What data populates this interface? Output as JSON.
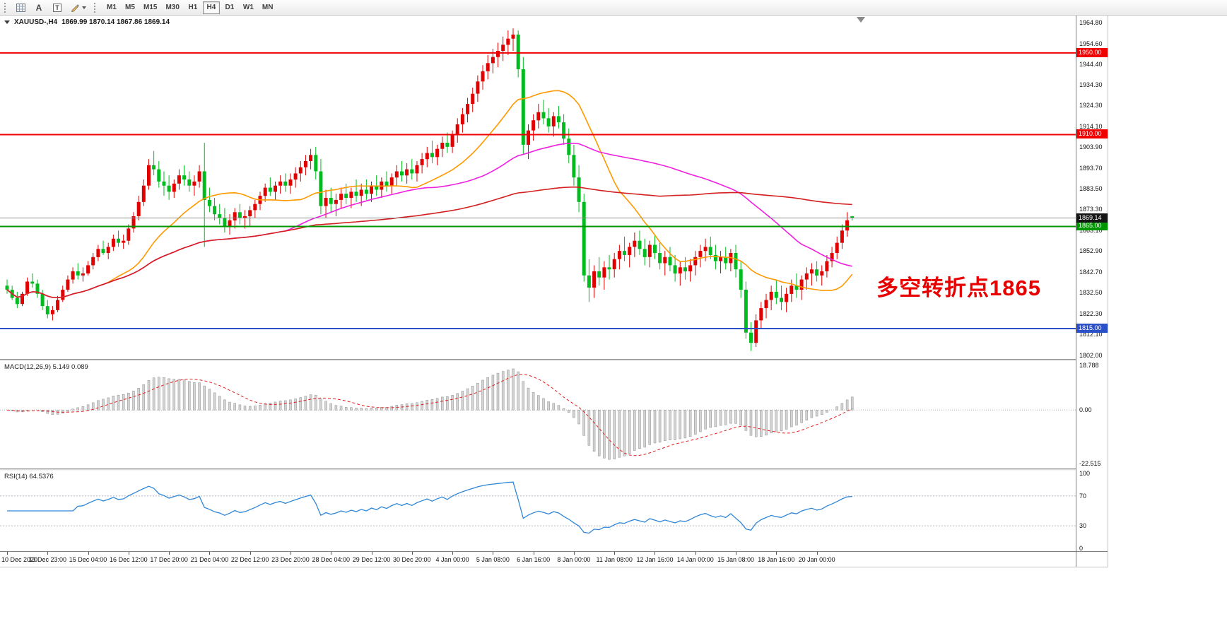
{
  "toolbar": {
    "text_label": "A",
    "text_box_label": "T",
    "timeframes": [
      {
        "label": "M1",
        "active": false
      },
      {
        "label": "M5",
        "active": false
      },
      {
        "label": "M15",
        "active": false
      },
      {
        "label": "M30",
        "active": false
      },
      {
        "label": "H1",
        "active": false
      },
      {
        "label": "H4",
        "active": true
      },
      {
        "label": "D1",
        "active": false
      },
      {
        "label": "W1",
        "active": false
      },
      {
        "label": "MN",
        "active": false
      }
    ]
  },
  "chart": {
    "title": {
      "symbol_tf": "XAUUSD-,H4",
      "ohlc": "1869.99 1870.14 1867.86 1869.14"
    },
    "annotation": {
      "text": "多空转折点1865",
      "color": "#e80000"
    }
  },
  "chart_data": [
    {
      "type": "candlestick",
      "title": "XAUUSD-,H4",
      "symbol": "XAUUSD",
      "timeframe": "H4",
      "ylim": [
        1800.1,
        1968.3
      ],
      "colors": {
        "up": "#e00000",
        "down": "#00bc1e",
        "bg": "#ffffff"
      },
      "y_axis_labels": [
        "1964.80",
        "1954.60",
        "1944.40",
        "1934.30",
        "1924.30",
        "1914.10",
        "1903.90",
        "1893.70",
        "1883.50",
        "1873.30",
        "1863.10",
        "1852.90",
        "1842.70",
        "1832.50",
        "1822.30",
        "1812.10",
        "1802.00"
      ],
      "x_labels": [
        "10 Dec 2020",
        "13 Dec 23:00",
        "15 Dec 04:00",
        "16 Dec 12:00",
        "17 Dec 20:00",
        "21 Dec 04:00",
        "22 Dec 12:00",
        "23 Dec 20:00",
        "28 Dec 04:00",
        "29 Dec 12:00",
        "30 Dec 20:00",
        "4 Jan 00:00",
        "5 Jan 08:00",
        "6 Jan 16:00",
        "8 Jan 00:00",
        "11 Jan 08:00",
        "12 Jan 16:00",
        "14 Jan 00:00",
        "15 Jan 08:00",
        "18 Jan 16:00",
        "20 Jan 00:00"
      ],
      "candles_per_label": 8,
      "candles": [
        [
          1836,
          1839,
          1832,
          1834
        ],
        [
          1834,
          1836,
          1829,
          1830
        ],
        [
          1830,
          1833,
          1825,
          1827
        ],
        [
          1827,
          1833,
          1826,
          1832
        ],
        [
          1832,
          1840,
          1831,
          1838
        ],
        [
          1838,
          1842,
          1835,
          1837
        ],
        [
          1837,
          1839,
          1830,
          1832
        ],
        [
          1832,
          1834,
          1824,
          1826
        ],
        [
          1826,
          1829,
          1820,
          1822
        ],
        [
          1822,
          1826,
          1819,
          1824
        ],
        [
          1824,
          1831,
          1823,
          1829
        ],
        [
          1829,
          1836,
          1828,
          1834
        ],
        [
          1834,
          1841,
          1833,
          1839
        ],
        [
          1839,
          1845,
          1837,
          1843
        ],
        [
          1843,
          1847,
          1839,
          1841
        ],
        [
          1841,
          1845,
          1838,
          1842
        ],
        [
          1842,
          1848,
          1841,
          1846
        ],
        [
          1846,
          1852,
          1844,
          1850
        ],
        [
          1850,
          1856,
          1848,
          1854
        ],
        [
          1854,
          1858,
          1851,
          1852
        ],
        [
          1852,
          1857,
          1849,
          1855
        ],
        [
          1855,
          1861,
          1853,
          1859
        ],
        [
          1859,
          1863,
          1855,
          1857
        ],
        [
          1857,
          1861,
          1854,
          1858
        ],
        [
          1858,
          1866,
          1856,
          1864
        ],
        [
          1864,
          1872,
          1862,
          1870
        ],
        [
          1870,
          1880,
          1868,
          1877
        ],
        [
          1877,
          1888,
          1875,
          1885
        ],
        [
          1885,
          1898,
          1883,
          1895
        ],
        [
          1895,
          1902,
          1890,
          1893
        ],
        [
          1893,
          1897,
          1884,
          1887
        ],
        [
          1887,
          1892,
          1880,
          1885
        ],
        [
          1885,
          1890,
          1878,
          1882
        ],
        [
          1882,
          1888,
          1879,
          1886
        ],
        [
          1886,
          1893,
          1883,
          1890
        ],
        [
          1890,
          1895,
          1885,
          1888
        ],
        [
          1888,
          1892,
          1882,
          1885
        ],
        [
          1885,
          1890,
          1880,
          1887
        ],
        [
          1887,
          1895,
          1884,
          1892
        ],
        [
          1892,
          1906,
          1855,
          1878
        ],
        [
          1878,
          1884,
          1872,
          1875
        ],
        [
          1875,
          1879,
          1868,
          1871
        ],
        [
          1871,
          1876,
          1866,
          1869
        ],
        [
          1869,
          1874,
          1862,
          1865
        ],
        [
          1865,
          1871,
          1861,
          1868
        ],
        [
          1868,
          1874,
          1864,
          1872
        ],
        [
          1872,
          1876,
          1866,
          1869
        ],
        [
          1869,
          1873,
          1864,
          1870
        ],
        [
          1870,
          1875,
          1865,
          1873
        ],
        [
          1873,
          1878,
          1869,
          1876
        ],
        [
          1876,
          1882,
          1873,
          1880
        ],
        [
          1880,
          1886,
          1877,
          1884
        ],
        [
          1884,
          1889,
          1880,
          1882
        ],
        [
          1882,
          1887,
          1878,
          1885
        ],
        [
          1885,
          1890,
          1881,
          1887
        ],
        [
          1887,
          1891,
          1882,
          1885
        ],
        [
          1885,
          1891,
          1881,
          1888
        ],
        [
          1888,
          1894,
          1884,
          1891
        ],
        [
          1891,
          1897,
          1887,
          1894
        ],
        [
          1894,
          1900,
          1890,
          1897
        ],
        [
          1897,
          1903,
          1893,
          1900
        ],
        [
          1900,
          1904,
          1888,
          1892
        ],
        [
          1892,
          1898,
          1871,
          1875
        ],
        [
          1875,
          1883,
          1869,
          1879
        ],
        [
          1879,
          1884,
          1872,
          1876
        ],
        [
          1876,
          1881,
          1870,
          1878
        ],
        [
          1878,
          1884,
          1874,
          1881
        ],
        [
          1881,
          1886,
          1876,
          1879
        ],
        [
          1879,
          1884,
          1874,
          1882
        ],
        [
          1882,
          1888,
          1877,
          1880
        ],
        [
          1880,
          1886,
          1875,
          1883
        ],
        [
          1883,
          1888,
          1878,
          1881
        ],
        [
          1881,
          1887,
          1877,
          1885
        ],
        [
          1885,
          1890,
          1880,
          1883
        ],
        [
          1883,
          1889,
          1879,
          1887
        ],
        [
          1887,
          1892,
          1882,
          1885
        ],
        [
          1885,
          1891,
          1881,
          1889
        ],
        [
          1889,
          1895,
          1885,
          1892
        ],
        [
          1892,
          1897,
          1887,
          1890
        ],
        [
          1890,
          1896,
          1886,
          1893
        ],
        [
          1893,
          1898,
          1888,
          1891
        ],
        [
          1891,
          1897,
          1887,
          1895
        ],
        [
          1895,
          1901,
          1891,
          1898
        ],
        [
          1898,
          1904,
          1894,
          1901
        ],
        [
          1901,
          1907,
          1896,
          1899
        ],
        [
          1899,
          1905,
          1895,
          1903
        ],
        [
          1903,
          1909,
          1899,
          1906
        ],
        [
          1906,
          1911,
          1901,
          1904
        ],
        [
          1904,
          1912,
          1901,
          1910
        ],
        [
          1910,
          1918,
          1906,
          1915
        ],
        [
          1915,
          1923,
          1911,
          1920
        ],
        [
          1920,
          1928,
          1916,
          1925
        ],
        [
          1925,
          1933,
          1921,
          1930
        ],
        [
          1930,
          1939,
          1926,
          1936
        ],
        [
          1936,
          1944,
          1932,
          1941
        ],
        [
          1941,
          1949,
          1937,
          1945
        ],
        [
          1945,
          1952,
          1940,
          1948
        ],
        [
          1948,
          1955,
          1943,
          1951
        ],
        [
          1951,
          1958,
          1946,
          1954
        ],
        [
          1954,
          1961,
          1949,
          1957
        ],
        [
          1957,
          1962,
          1951,
          1959
        ],
        [
          1959,
          1961,
          1938,
          1942
        ],
        [
          1942,
          1948,
          1900,
          1905
        ],
        [
          1905,
          1915,
          1898,
          1912
        ],
        [
          1912,
          1920,
          1907,
          1917
        ],
        [
          1917,
          1925,
          1913,
          1921
        ],
        [
          1921,
          1927,
          1915,
          1918
        ],
        [
          1918,
          1923,
          1911,
          1914
        ],
        [
          1914,
          1921,
          1909,
          1919
        ],
        [
          1919,
          1924,
          1913,
          1916
        ],
        [
          1916,
          1920,
          1905,
          1908
        ],
        [
          1908,
          1913,
          1896,
          1900
        ],
        [
          1900,
          1905,
          1885,
          1889
        ],
        [
          1889,
          1895,
          1872,
          1877
        ],
        [
          1877,
          1881,
          1838,
          1841
        ],
        [
          1841,
          1849,
          1828,
          1835
        ],
        [
          1835,
          1846,
          1830,
          1843
        ],
        [
          1843,
          1850,
          1836,
          1840
        ],
        [
          1840,
          1848,
          1834,
          1845
        ],
        [
          1845,
          1851,
          1839,
          1844
        ],
        [
          1844,
          1852,
          1840,
          1849
        ],
        [
          1849,
          1856,
          1844,
          1853
        ],
        [
          1853,
          1860,
          1848,
          1851
        ],
        [
          1851,
          1857,
          1845,
          1855
        ],
        [
          1855,
          1862,
          1850,
          1858
        ],
        [
          1858,
          1863,
          1851,
          1854
        ],
        [
          1854,
          1859,
          1846,
          1850
        ],
        [
          1850,
          1858,
          1845,
          1856
        ],
        [
          1856,
          1861,
          1849,
          1852
        ],
        [
          1852,
          1857,
          1844,
          1847
        ],
        [
          1847,
          1853,
          1841,
          1850
        ],
        [
          1850,
          1855,
          1843,
          1846
        ],
        [
          1846,
          1851,
          1838,
          1842
        ],
        [
          1842,
          1848,
          1836,
          1845
        ],
        [
          1845,
          1850,
          1839,
          1843
        ],
        [
          1843,
          1849,
          1838,
          1846
        ],
        [
          1846,
          1853,
          1841,
          1850
        ],
        [
          1850,
          1856,
          1845,
          1853
        ],
        [
          1853,
          1859,
          1848,
          1855
        ],
        [
          1855,
          1860,
          1849,
          1851
        ],
        [
          1851,
          1856,
          1844,
          1848
        ],
        [
          1848,
          1853,
          1842,
          1850
        ],
        [
          1850,
          1855,
          1844,
          1847
        ],
        [
          1847,
          1854,
          1843,
          1852
        ],
        [
          1852,
          1856,
          1840,
          1844
        ],
        [
          1844,
          1848,
          1830,
          1834
        ],
        [
          1834,
          1838,
          1810,
          1813
        ],
        [
          1813,
          1818,
          1804,
          1808
        ],
        [
          1808,
          1822,
          1806,
          1819
        ],
        [
          1819,
          1828,
          1815,
          1825
        ],
        [
          1825,
          1832,
          1820,
          1829
        ],
        [
          1829,
          1836,
          1824,
          1833
        ],
        [
          1833,
          1839,
          1827,
          1830
        ],
        [
          1830,
          1836,
          1824,
          1828
        ],
        [
          1828,
          1835,
          1823,
          1832
        ],
        [
          1832,
          1839,
          1828,
          1836
        ],
        [
          1836,
          1842,
          1830,
          1834
        ],
        [
          1834,
          1841,
          1829,
          1839
        ],
        [
          1839,
          1845,
          1834,
          1842
        ],
        [
          1842,
          1847,
          1836,
          1844
        ],
        [
          1844,
          1848,
          1838,
          1841
        ],
        [
          1841,
          1846,
          1836,
          1843
        ],
        [
          1843,
          1851,
          1840,
          1848
        ],
        [
          1848,
          1855,
          1845,
          1852
        ],
        [
          1852,
          1860,
          1849,
          1857
        ],
        [
          1857,
          1866,
          1854,
          1863
        ],
        [
          1863,
          1872,
          1860,
          1868
        ],
        [
          1869.99,
          1870.14,
          1867.86,
          1869.14
        ]
      ],
      "overlays": [
        {
          "name": "MA-fast",
          "type": "sma",
          "period": 20,
          "color": "#ff9900"
        },
        {
          "name": "MA-mid",
          "type": "sma",
          "period": 56,
          "color": "#f020e0"
        },
        {
          "name": "MA-slow",
          "type": "sma",
          "period": 130,
          "color": "#d42020"
        }
      ],
      "hlines": [
        {
          "price": 1950.0,
          "label": "1950.00",
          "color": "#f00000"
        },
        {
          "price": 1910.0,
          "label": "1910.00",
          "color": "#f00000"
        },
        {
          "price": 1865.0,
          "label": "1865.00",
          "color": "#009600"
        },
        {
          "price": 1815.0,
          "label": "1815.00",
          "color": "#2b50c8"
        }
      ],
      "current_price": {
        "value": 1869.14,
        "label": "1869.14",
        "line_color": "#909090",
        "tag_bg": "#151515"
      }
    },
    {
      "type": "macd",
      "label_full": "MACD(12,26,9) 5.149 0.089",
      "name": "MACD",
      "params": [
        12,
        26,
        9
      ],
      "main_value": 5.149,
      "signal_value": 0.089,
      "ylim": [
        -24.6,
        20.6
      ],
      "axis_labels": [
        {
          "value": 18.788,
          "text": "18.788"
        },
        {
          "value": 0,
          "text": "0.00"
        },
        {
          "value": -22.515,
          "text": "-22.515"
        }
      ],
      "histogram_color": "#d4d4d4",
      "histogram_border": "#8e8e8e",
      "signal_color": "#e02020"
    },
    {
      "type": "rsi",
      "label_full": "RSI(14) 64.5376",
      "name": "RSI",
      "period": 14,
      "value": 64.5376,
      "ylim": [
        -4,
        104
      ],
      "levels": [
        70,
        30
      ],
      "axis_labels": [
        {
          "value": 100,
          "text": "100"
        },
        {
          "value": 70,
          "text": "70"
        },
        {
          "value": 30,
          "text": "30"
        },
        {
          "value": 0,
          "text": "0"
        }
      ],
      "line_color": "#2f86d6"
    }
  ]
}
